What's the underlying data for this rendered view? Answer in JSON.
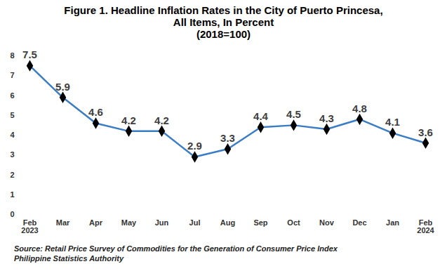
{
  "chart_data": {
    "type": "line",
    "title": "Figure 1. Headline Inflation Rates in the City of Puerto Princesa,\nAll Items, In Percent\n(2018=100)",
    "caption": "Source: Retail Price Survey of Commodities for the Generation of Consumer Price Index\n      Philippine Statistics Authority",
    "categories": [
      "Feb\n2023",
      "Mar",
      "Apr",
      "May",
      "Jun",
      "Jul",
      "Aug",
      "Sep",
      "Oct",
      "Nov",
      "Dec",
      "Jan",
      "Feb\n2024"
    ],
    "values": [
      7.5,
      5.9,
      4.6,
      4.2,
      4.2,
      2.9,
      3.3,
      4.4,
      4.5,
      4.3,
      4.8,
      4.1,
      3.6
    ],
    "color": "#3b7dc4",
    "marker": "diamond",
    "ylim": [
      0,
      8
    ],
    "yticks": [
      0,
      1,
      2,
      3,
      4,
      5,
      6,
      7,
      8
    ],
    "grid": false,
    "data_labels": true
  }
}
